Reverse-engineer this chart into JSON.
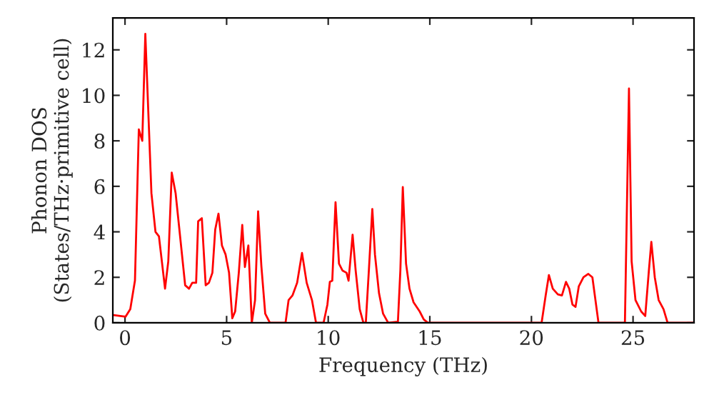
{
  "chart_data": {
    "type": "line",
    "xlabel": "Frequency (THz)",
    "ylabel": "Phonon DOS\n(States/THz·primitive cell)",
    "xlim": [
      -0.6,
      28
    ],
    "ylim": [
      0,
      13.4
    ],
    "xticks": [
      0,
      5,
      10,
      15,
      20,
      25
    ],
    "yticks": [
      0,
      2,
      4,
      6,
      8,
      10,
      12
    ],
    "grid": false,
    "legend": false,
    "marker": "none",
    "line_style": "solid",
    "series": [
      {
        "color": "#ff0000",
        "x": [
          -0.56,
          0.03,
          0.26,
          0.49,
          0.68,
          0.85,
          1.0,
          1.3,
          1.5,
          1.67,
          1.97,
          2.13,
          2.3,
          2.49,
          2.96,
          3.15,
          3.31,
          3.5,
          3.6,
          3.78,
          3.97,
          4.13,
          4.3,
          4.44,
          4.6,
          4.77,
          4.95,
          5.12,
          5.28,
          5.42,
          5.6,
          5.77,
          5.9,
          6.07,
          6.24,
          6.4,
          6.55,
          6.71,
          6.9,
          7.13,
          7.9,
          8.05,
          8.24,
          8.47,
          8.71,
          8.94,
          9.2,
          9.4,
          9.77,
          9.96,
          10.08,
          10.2,
          10.36,
          10.53,
          10.7,
          10.9,
          11.0,
          11.2,
          11.35,
          11.55,
          11.73,
          11.85,
          12.0,
          12.17,
          12.3,
          12.5,
          12.7,
          12.95,
          13.43,
          13.55,
          13.67,
          13.83,
          14.0,
          14.2,
          14.5,
          14.7,
          14.9,
          20.5,
          20.7,
          20.86,
          21.05,
          21.3,
          21.5,
          21.7,
          21.86,
          22.02,
          22.17,
          22.33,
          22.56,
          22.8,
          23.0,
          23.15,
          23.3,
          24.6,
          24.8,
          24.93,
          25.12,
          25.4,
          25.6,
          25.78,
          25.9,
          26.07,
          26.26,
          26.5,
          26.7,
          28.0
        ],
        "values": [
          0.34,
          0.27,
          0.6,
          1.86,
          8.5,
          8.0,
          12.7,
          5.7,
          4.0,
          3.8,
          1.5,
          2.7,
          6.6,
          5.7,
          1.65,
          1.5,
          1.76,
          1.76,
          4.46,
          4.6,
          1.65,
          1.76,
          2.2,
          4.1,
          4.8,
          3.4,
          3.0,
          2.2,
          0.2,
          0.5,
          2.2,
          4.3,
          2.45,
          3.4,
          0,
          1.0,
          4.9,
          2.5,
          0.4,
          0,
          0,
          1.0,
          1.2,
          1.76,
          3.07,
          1.76,
          1.0,
          0,
          0,
          0.8,
          1.8,
          1.85,
          5.3,
          2.6,
          2.3,
          2.2,
          1.85,
          3.87,
          2.3,
          0.6,
          0,
          0,
          2.3,
          5.0,
          3.0,
          1.3,
          0.4,
          0,
          0.05,
          2.3,
          5.97,
          2.6,
          1.5,
          0.9,
          0.5,
          0.15,
          0,
          0,
          1.2,
          2.1,
          1.5,
          1.25,
          1.2,
          1.8,
          1.5,
          0.8,
          0.7,
          1.6,
          2.0,
          2.15,
          2.0,
          1.0,
          0,
          0,
          10.3,
          2.7,
          1.0,
          0.5,
          0.3,
          2.3,
          3.56,
          2.0,
          1.0,
          0.6,
          0,
          0
        ]
      }
    ]
  }
}
